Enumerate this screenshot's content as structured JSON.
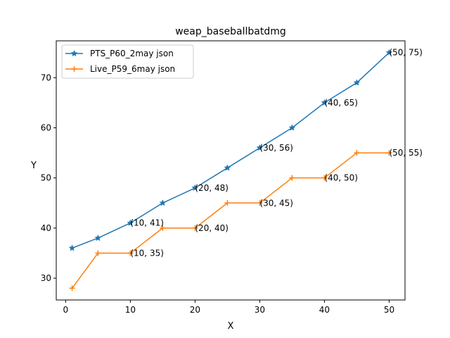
{
  "chart_data": {
    "type": "line",
    "title": "weap_baseballbatdmg",
    "xlabel": "X",
    "ylabel": "Y",
    "xlim": [
      -1.45,
      52.45
    ],
    "ylim": [
      25.65,
      77.35
    ],
    "xticks": [
      0,
      10,
      20,
      30,
      40,
      50
    ],
    "yticks": [
      30,
      40,
      50,
      60,
      70
    ],
    "grid": false,
    "legend_position": "upper-left",
    "series": [
      {
        "name": "PTS_P60_2may json",
        "color": "#1f77b4",
        "marker": "star",
        "x": [
          1,
          5,
          10,
          15,
          20,
          25,
          30,
          35,
          40,
          45,
          50
        ],
        "y": [
          36,
          38,
          41,
          45,
          48,
          52,
          56,
          60,
          65,
          69,
          75
        ]
      },
      {
        "name": "Live_P59_6may json",
        "color": "#ff7f0e",
        "marker": "plus",
        "x": [
          1,
          5,
          10,
          15,
          20,
          25,
          30,
          35,
          40,
          45,
          50
        ],
        "y": [
          28,
          35,
          35,
          40,
          40,
          45,
          45,
          50,
          50,
          55,
          55
        ]
      }
    ],
    "annotations": [
      {
        "text": "(10, 41)",
        "x": 10,
        "y": 41
      },
      {
        "text": "(20, 48)",
        "x": 20,
        "y": 48
      },
      {
        "text": "(30, 56)",
        "x": 30,
        "y": 56
      },
      {
        "text": "(40, 65)",
        "x": 40,
        "y": 65
      },
      {
        "text": "(50, 75)",
        "x": 50,
        "y": 75
      },
      {
        "text": "(10, 35)",
        "x": 10,
        "y": 35
      },
      {
        "text": "(20, 40)",
        "x": 20,
        "y": 40
      },
      {
        "text": "(30, 45)",
        "x": 30,
        "y": 45
      },
      {
        "text": "(40, 50)",
        "x": 40,
        "y": 50
      },
      {
        "text": "(50, 55)",
        "x": 50,
        "y": 55
      }
    ]
  }
}
